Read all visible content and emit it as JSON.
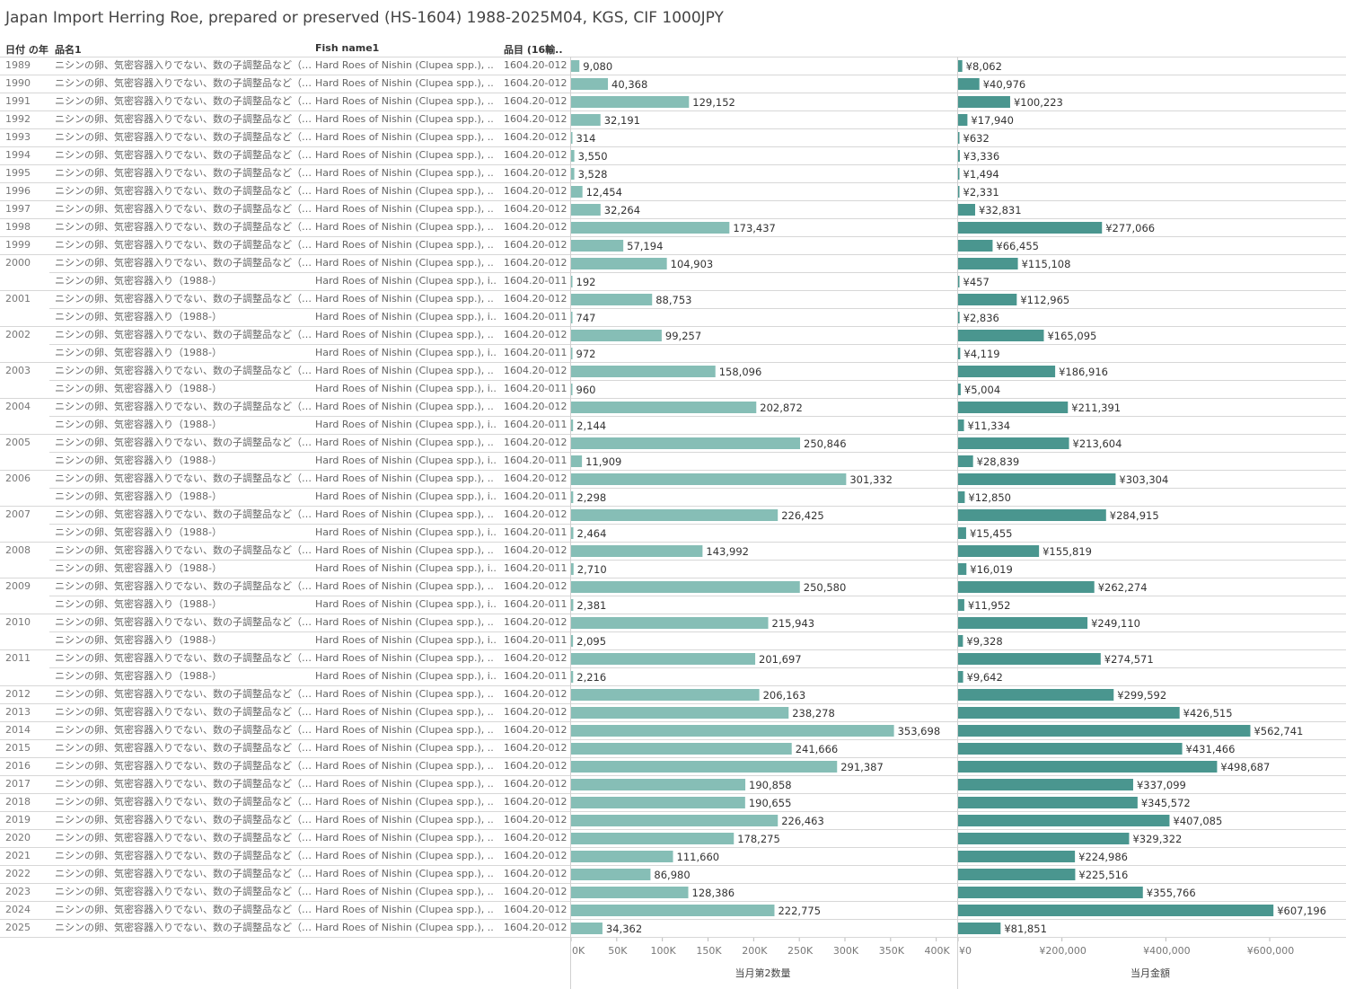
{
  "title": "Japan Import Herring Roe, prepared or preserved (HS-1604) 1988-2025M04, KGS, CIF 1000JPY",
  "headers": {
    "year": "日付 の年",
    "name": "品名1",
    "fish": "Fish name1",
    "code": "品目 (16輸.."
  },
  "colors": {
    "qty_bar": "#86beb6",
    "value_bar": "#4a968f",
    "grid": "#d7d7d7"
  },
  "chart_data": [
    {
      "type": "bar",
      "orientation": "horizontal",
      "xlabel": "当月第2数量",
      "xlim": [
        0,
        420000
      ],
      "ticks": [
        0,
        50000,
        100000,
        150000,
        200000,
        250000,
        300000,
        350000,
        400000
      ],
      "tick_labels": [
        "0K",
        "50K",
        "100K",
        "150K",
        "200K",
        "250K",
        "300K",
        "350K",
        "400K"
      ],
      "values": [
        9080,
        40368,
        129152,
        32191,
        314,
        3550,
        3528,
        12454,
        32264,
        173437,
        57194,
        104903,
        192,
        88753,
        747,
        99257,
        972,
        158096,
        960,
        202872,
        2144,
        250846,
        11909,
        301332,
        2298,
        226425,
        2464,
        143992,
        2710,
        250580,
        2381,
        215943,
        2095,
        201697,
        2216,
        206163,
        238278,
        353698,
        241666,
        291387,
        190858,
        190655,
        226463,
        178275,
        111660,
        86980,
        128386,
        222775,
        34362
      ],
      "labels": [
        "9,080",
        "40,368",
        "129,152",
        "32,191",
        "314",
        "3,550",
        "3,528",
        "12,454",
        "32,264",
        "173,437",
        "57,194",
        "104,903",
        "192",
        "88,753",
        "747",
        "99,257",
        "972",
        "158,096",
        "960",
        "202,872",
        "2,144",
        "250,846",
        "11,909",
        "301,332",
        "2,298",
        "226,425",
        "2,464",
        "143,992",
        "2,710",
        "250,580",
        "2,381",
        "215,943",
        "2,095",
        "201,697",
        "2,216",
        "206,163",
        "238,278",
        "353,698",
        "241,666",
        "291,387",
        "190,858",
        "190,655",
        "226,463",
        "178,275",
        "111,660",
        "86,980",
        "128,386",
        "222,775",
        "34,362"
      ]
    },
    {
      "type": "bar",
      "orientation": "horizontal",
      "xlabel": "当月金額",
      "xlim": [
        0,
        740000
      ],
      "ticks": [
        0,
        200000,
        400000,
        600000
      ],
      "tick_labels": [
        "¥0",
        "¥200,000",
        "¥400,000",
        "¥600,000"
      ],
      "values": [
        8062,
        40976,
        100223,
        17940,
        632,
        3336,
        1494,
        2331,
        32831,
        277066,
        66455,
        115108,
        457,
        112965,
        2836,
        165095,
        4119,
        186916,
        5004,
        211391,
        11334,
        213604,
        28839,
        303304,
        12850,
        284915,
        15455,
        155819,
        16019,
        262274,
        11952,
        249110,
        9328,
        274571,
        9642,
        299592,
        426515,
        562741,
        431466,
        498687,
        337099,
        345572,
        407085,
        329322,
        224986,
        225516,
        355766,
        607196,
        81851
      ],
      "labels": [
        "¥8,062",
        "¥40,976",
        "¥100,223",
        "¥17,940",
        "¥632",
        "¥3,336",
        "¥1,494",
        "¥2,331",
        "¥32,831",
        "¥277,066",
        "¥66,455",
        "¥115,108",
        "¥457",
        "¥112,965",
        "¥2,836",
        "¥165,095",
        "¥4,119",
        "¥186,916",
        "¥5,004",
        "¥211,391",
        "¥11,334",
        "¥213,604",
        "¥28,839",
        "¥303,304",
        "¥12,850",
        "¥284,915",
        "¥15,455",
        "¥155,819",
        "¥16,019",
        "¥262,274",
        "¥11,952",
        "¥249,110",
        "¥9,328",
        "¥274,571",
        "¥9,642",
        "¥299,592",
        "¥426,515",
        "¥562,741",
        "¥431,466",
        "¥498,687",
        "¥337,099",
        "¥345,572",
        "¥407,085",
        "¥329,322",
        "¥224,986",
        "¥225,516",
        "¥355,766",
        "¥607,196",
        "¥81,851"
      ]
    }
  ],
  "rows": [
    {
      "year": "1989",
      "name": "ニシンの卵、気密容器入りでない、数の子調整品など（19..",
      "fish": "Hard Roes of Nishin (Clupea spp.), ..",
      "code": "1604.20-012"
    },
    {
      "year": "1990",
      "name": "ニシンの卵、気密容器入りでない、数の子調整品など（19..",
      "fish": "Hard Roes of Nishin (Clupea spp.), ..",
      "code": "1604.20-012"
    },
    {
      "year": "1991",
      "name": "ニシンの卵、気密容器入りでない、数の子調整品など（19..",
      "fish": "Hard Roes of Nishin (Clupea spp.), ..",
      "code": "1604.20-012"
    },
    {
      "year": "1992",
      "name": "ニシンの卵、気密容器入りでない、数の子調整品など（19..",
      "fish": "Hard Roes of Nishin (Clupea spp.), ..",
      "code": "1604.20-012"
    },
    {
      "year": "1993",
      "name": "ニシンの卵、気密容器入りでない、数の子調整品など（19..",
      "fish": "Hard Roes of Nishin (Clupea spp.), ..",
      "code": "1604.20-012"
    },
    {
      "year": "1994",
      "name": "ニシンの卵、気密容器入りでない、数の子調整品など（19..",
      "fish": "Hard Roes of Nishin (Clupea spp.), ..",
      "code": "1604.20-012"
    },
    {
      "year": "1995",
      "name": "ニシンの卵、気密容器入りでない、数の子調整品など（19..",
      "fish": "Hard Roes of Nishin (Clupea spp.), ..",
      "code": "1604.20-012"
    },
    {
      "year": "1996",
      "name": "ニシンの卵、気密容器入りでない、数の子調整品など（19..",
      "fish": "Hard Roes of Nishin (Clupea spp.), ..",
      "code": "1604.20-012"
    },
    {
      "year": "1997",
      "name": "ニシンの卵、気密容器入りでない、数の子調整品など（19..",
      "fish": "Hard Roes of Nishin (Clupea spp.), ..",
      "code": "1604.20-012"
    },
    {
      "year": "1998",
      "name": "ニシンの卵、気密容器入りでない、数の子調整品など（19..",
      "fish": "Hard Roes of Nishin (Clupea spp.), ..",
      "code": "1604.20-012"
    },
    {
      "year": "1999",
      "name": "ニシンの卵、気密容器入りでない、数の子調整品など（19..",
      "fish": "Hard Roes of Nishin (Clupea spp.), ..",
      "code": "1604.20-012"
    },
    {
      "year": "2000",
      "name": "ニシンの卵、気密容器入りでない、数の子調整品など（19..",
      "fish": "Hard Roes of Nishin (Clupea spp.), ..",
      "code": "1604.20-012"
    },
    {
      "year": "",
      "name": "ニシンの卵、気密容器入り（1988-）",
      "fish": "Hard Roes of Nishin (Clupea spp.), i..",
      "code": "1604.20-011"
    },
    {
      "year": "2001",
      "name": "ニシンの卵、気密容器入りでない、数の子調整品など（19..",
      "fish": "Hard Roes of Nishin (Clupea spp.), ..",
      "code": "1604.20-012"
    },
    {
      "year": "",
      "name": "ニシンの卵、気密容器入り（1988-）",
      "fish": "Hard Roes of Nishin (Clupea spp.), i..",
      "code": "1604.20-011"
    },
    {
      "year": "2002",
      "name": "ニシンの卵、気密容器入りでない、数の子調整品など（19..",
      "fish": "Hard Roes of Nishin (Clupea spp.), ..",
      "code": "1604.20-012"
    },
    {
      "year": "",
      "name": "ニシンの卵、気密容器入り（1988-）",
      "fish": "Hard Roes of Nishin (Clupea spp.), i..",
      "code": "1604.20-011"
    },
    {
      "year": "2003",
      "name": "ニシンの卵、気密容器入りでない、数の子調整品など（19..",
      "fish": "Hard Roes of Nishin (Clupea spp.), ..",
      "code": "1604.20-012"
    },
    {
      "year": "",
      "name": "ニシンの卵、気密容器入り（1988-）",
      "fish": "Hard Roes of Nishin (Clupea spp.), i..",
      "code": "1604.20-011"
    },
    {
      "year": "2004",
      "name": "ニシンの卵、気密容器入りでない、数の子調整品など（19..",
      "fish": "Hard Roes of Nishin (Clupea spp.), ..",
      "code": "1604.20-012"
    },
    {
      "year": "",
      "name": "ニシンの卵、気密容器入り（1988-）",
      "fish": "Hard Roes of Nishin (Clupea spp.), i..",
      "code": "1604.20-011"
    },
    {
      "year": "2005",
      "name": "ニシンの卵、気密容器入りでない、数の子調整品など（19..",
      "fish": "Hard Roes of Nishin (Clupea spp.), ..",
      "code": "1604.20-012"
    },
    {
      "year": "",
      "name": "ニシンの卵、気密容器入り（1988-）",
      "fish": "Hard Roes of Nishin (Clupea spp.), i..",
      "code": "1604.20-011"
    },
    {
      "year": "2006",
      "name": "ニシンの卵、気密容器入りでない、数の子調整品など（19..",
      "fish": "Hard Roes of Nishin (Clupea spp.), ..",
      "code": "1604.20-012"
    },
    {
      "year": "",
      "name": "ニシンの卵、気密容器入り（1988-）",
      "fish": "Hard Roes of Nishin (Clupea spp.), i..",
      "code": "1604.20-011"
    },
    {
      "year": "2007",
      "name": "ニシンの卵、気密容器入りでない、数の子調整品など（19..",
      "fish": "Hard Roes of Nishin (Clupea spp.), ..",
      "code": "1604.20-012"
    },
    {
      "year": "",
      "name": "ニシンの卵、気密容器入り（1988-）",
      "fish": "Hard Roes of Nishin (Clupea spp.), i..",
      "code": "1604.20-011"
    },
    {
      "year": "2008",
      "name": "ニシンの卵、気密容器入りでない、数の子調整品など（19..",
      "fish": "Hard Roes of Nishin (Clupea spp.), ..",
      "code": "1604.20-012"
    },
    {
      "year": "",
      "name": "ニシンの卵、気密容器入り（1988-）",
      "fish": "Hard Roes of Nishin (Clupea spp.), i..",
      "code": "1604.20-011"
    },
    {
      "year": "2009",
      "name": "ニシンの卵、気密容器入りでない、数の子調整品など（19..",
      "fish": "Hard Roes of Nishin (Clupea spp.), ..",
      "code": "1604.20-012"
    },
    {
      "year": "",
      "name": "ニシンの卵、気密容器入り（1988-）",
      "fish": "Hard Roes of Nishin (Clupea spp.), i..",
      "code": "1604.20-011"
    },
    {
      "year": "2010",
      "name": "ニシンの卵、気密容器入りでない、数の子調整品など（19..",
      "fish": "Hard Roes of Nishin (Clupea spp.), ..",
      "code": "1604.20-012"
    },
    {
      "year": "",
      "name": "ニシンの卵、気密容器入り（1988-）",
      "fish": "Hard Roes of Nishin (Clupea spp.), i..",
      "code": "1604.20-011"
    },
    {
      "year": "2011",
      "name": "ニシンの卵、気密容器入りでない、数の子調整品など（19..",
      "fish": "Hard Roes of Nishin (Clupea spp.), ..",
      "code": "1604.20-012"
    },
    {
      "year": "",
      "name": "ニシンの卵、気密容器入り（1988-）",
      "fish": "Hard Roes of Nishin (Clupea spp.), i..",
      "code": "1604.20-011"
    },
    {
      "year": "2012",
      "name": "ニシンの卵、気密容器入りでない、数の子調整品など（19..",
      "fish": "Hard Roes of Nishin (Clupea spp.), ..",
      "code": "1604.20-012"
    },
    {
      "year": "2013",
      "name": "ニシンの卵、気密容器入りでない、数の子調整品など（19..",
      "fish": "Hard Roes of Nishin (Clupea spp.), ..",
      "code": "1604.20-012"
    },
    {
      "year": "2014",
      "name": "ニシンの卵、気密容器入りでない、数の子調整品など（19..",
      "fish": "Hard Roes of Nishin (Clupea spp.), ..",
      "code": "1604.20-012"
    },
    {
      "year": "2015",
      "name": "ニシンの卵、気密容器入りでない、数の子調整品など（19..",
      "fish": "Hard Roes of Nishin (Clupea spp.), ..",
      "code": "1604.20-012"
    },
    {
      "year": "2016",
      "name": "ニシンの卵、気密容器入りでない、数の子調整品など（19..",
      "fish": "Hard Roes of Nishin (Clupea spp.), ..",
      "code": "1604.20-012"
    },
    {
      "year": "2017",
      "name": "ニシンの卵、気密容器入りでない、数の子調整品など（19..",
      "fish": "Hard Roes of Nishin (Clupea spp.), ..",
      "code": "1604.20-012"
    },
    {
      "year": "2018",
      "name": "ニシンの卵、気密容器入りでない、数の子調整品など（19..",
      "fish": "Hard Roes of Nishin (Clupea spp.), ..",
      "code": "1604.20-012"
    },
    {
      "year": "2019",
      "name": "ニシンの卵、気密容器入りでない、数の子調整品など（19..",
      "fish": "Hard Roes of Nishin (Clupea spp.), ..",
      "code": "1604.20-012"
    },
    {
      "year": "2020",
      "name": "ニシンの卵、気密容器入りでない、数の子調整品など（19..",
      "fish": "Hard Roes of Nishin (Clupea spp.), ..",
      "code": "1604.20-012"
    },
    {
      "year": "2021",
      "name": "ニシンの卵、気密容器入りでない、数の子調整品など（19..",
      "fish": "Hard Roes of Nishin (Clupea spp.), ..",
      "code": "1604.20-012"
    },
    {
      "year": "2022",
      "name": "ニシンの卵、気密容器入りでない、数の子調整品など（19..",
      "fish": "Hard Roes of Nishin (Clupea spp.), ..",
      "code": "1604.20-012"
    },
    {
      "year": "2023",
      "name": "ニシンの卵、気密容器入りでない、数の子調整品など（19..",
      "fish": "Hard Roes of Nishin (Clupea spp.), ..",
      "code": "1604.20-012"
    },
    {
      "year": "2024",
      "name": "ニシンの卵、気密容器入りでない、数の子調整品など（19..",
      "fish": "Hard Roes of Nishin (Clupea spp.), ..",
      "code": "1604.20-012"
    },
    {
      "year": "2025",
      "name": "ニシンの卵、気密容器入りでない、数の子調整品など（19..",
      "fish": "Hard Roes of Nishin (Clupea spp.), ..",
      "code": "1604.20-012"
    }
  ]
}
